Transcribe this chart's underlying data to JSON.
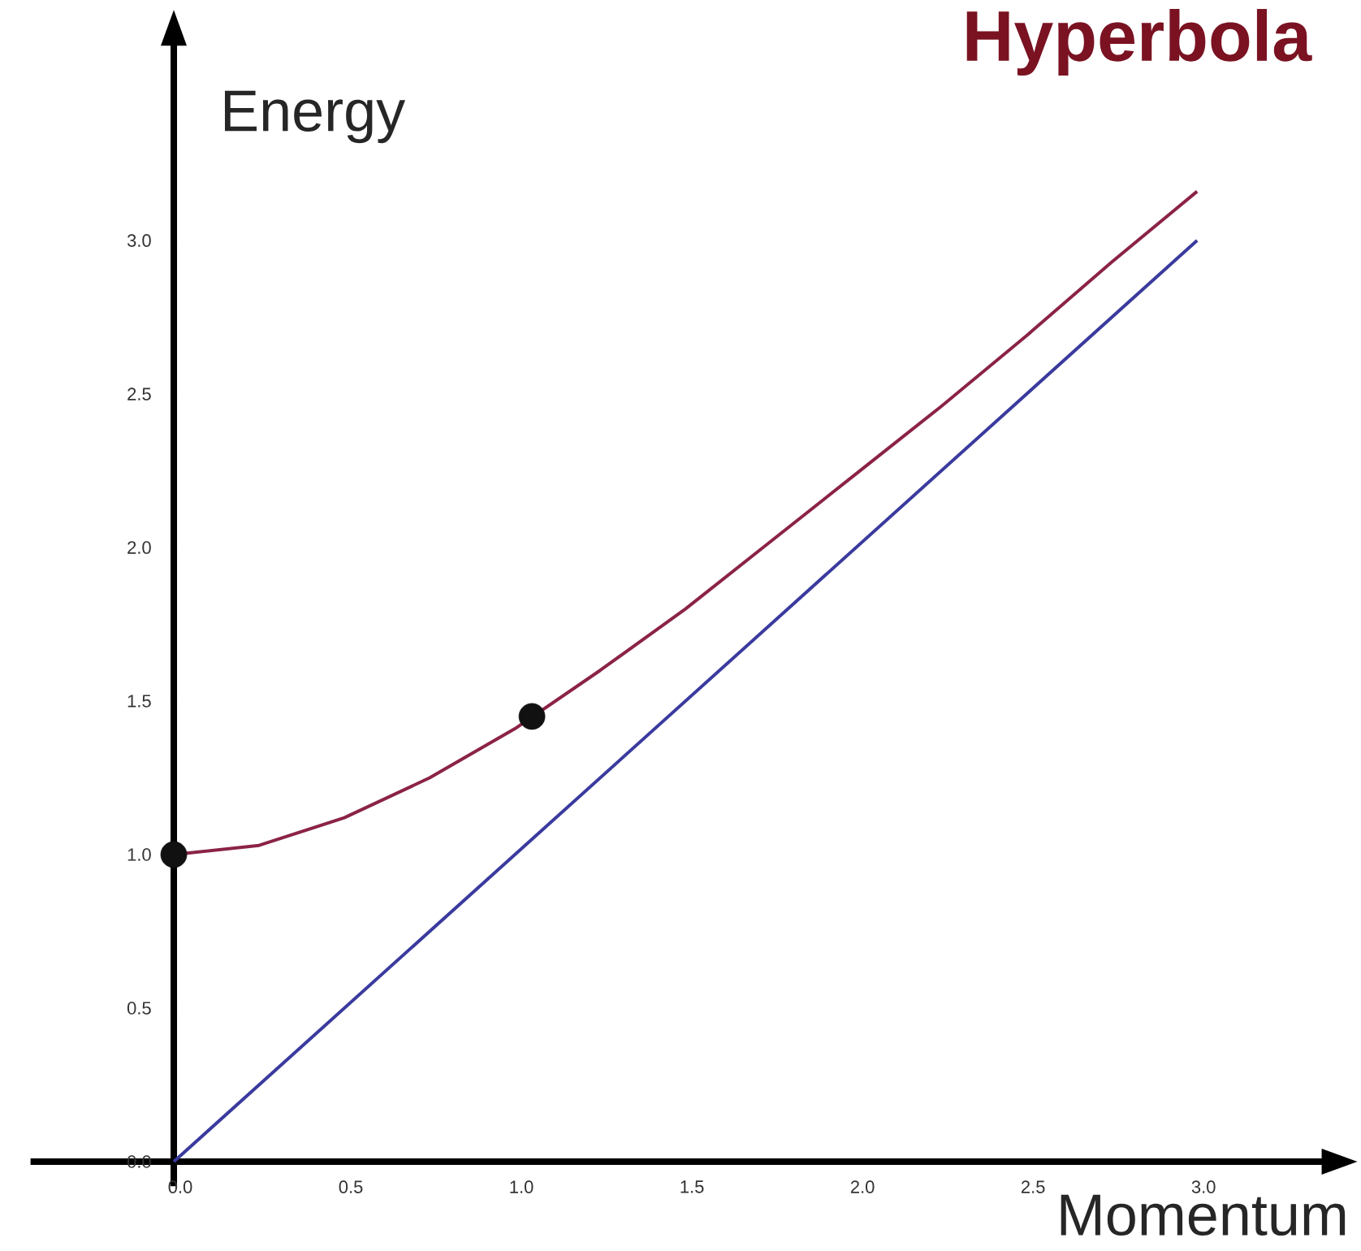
{
  "chart_data": {
    "type": "line",
    "title": "Hyperbola",
    "xlabel": "Momentum",
    "ylabel": "Energy",
    "xlim": [
      -0.42,
      3.37
    ],
    "ylim": [
      -0.08,
      3.64
    ],
    "xticks": [
      {
        "value": 0,
        "label": "0.0"
      },
      {
        "value": 0.5,
        "label": "0.5"
      },
      {
        "value": 1,
        "label": "1.0"
      },
      {
        "value": 1.5,
        "label": "1.5"
      },
      {
        "value": 2,
        "label": "2.0"
      },
      {
        "value": 2.5,
        "label": "2.5"
      },
      {
        "value": 3,
        "label": "3.0"
      }
    ],
    "yticks": [
      {
        "value": 0,
        "label": "0.0"
      },
      {
        "value": 0.5,
        "label": "0.5"
      },
      {
        "value": 1,
        "label": "1.0"
      },
      {
        "value": 1.5,
        "label": "1.5"
      },
      {
        "value": 2,
        "label": "2.0"
      },
      {
        "value": 2.5,
        "label": "2.5"
      },
      {
        "value": 3,
        "label": "3.0"
      }
    ],
    "series": [
      {
        "type": "line",
        "color": "#8b2346",
        "x": [
          0,
          0.25,
          0.5,
          0.75,
          1,
          1.25,
          1.5,
          1.75,
          2,
          2.25,
          2.5,
          2.75,
          3
        ],
        "values": [
          1,
          1.03,
          1.12,
          1.25,
          1.41,
          1.6,
          1.8,
          2.02,
          2.24,
          2.46,
          2.69,
          2.93,
          3.16
        ]
      },
      {
        "type": "line",
        "color": "#3a3a9e",
        "x": [
          0,
          3
        ],
        "values": [
          0,
          3
        ]
      },
      {
        "type": "scatter",
        "color": "#111111",
        "x": [
          0,
          1.05
        ],
        "values": [
          1,
          1.45
        ]
      }
    ]
  }
}
